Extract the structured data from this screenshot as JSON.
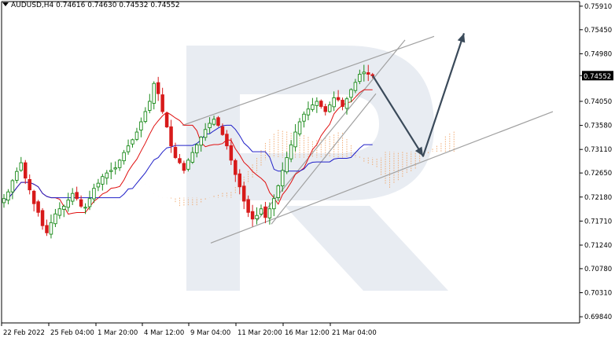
{
  "header": {
    "symbol": "AUDUSD,H4",
    "ohlc": "0.74616 0.74630 0.74532 0.74552"
  },
  "chart_data": {
    "type": "candlestick",
    "symbol": "AUDUSD",
    "timeframe": "H4",
    "current_price": "0.74552",
    "ylim": [
      0.6975,
      0.76
    ],
    "y_ticks": [
      "0.75910",
      "0.75450",
      "0.74980",
      "0.74050",
      "0.73580",
      "0.73110",
      "0.72650",
      "0.72180",
      "0.71710",
      "0.71240",
      "0.70780",
      "0.70310",
      "0.69840"
    ],
    "x_ticks": [
      "22 Feb 2022",
      "25 Feb 04:00",
      "1 Mar 20:00",
      "4 Mar 12:00",
      "9 Mar 04:00",
      "11 Mar 20:00",
      "16 Mar 12:00",
      "21 Mar 04:00"
    ],
    "grid": false,
    "colors": {
      "bull": "#1a8a1a",
      "bear": "#d71a1a",
      "tenkan": "#e01010",
      "kijun": "#2020c8",
      "cloud": "#f0a060",
      "channel": "#a0a0a0",
      "forecast": "#3a4a5a",
      "watermark": "#e8ecf2"
    },
    "series": [
      {
        "name": "price",
        "values": [
          0.7215,
          0.7228,
          0.725,
          0.7268,
          0.7285,
          0.7255,
          0.7232,
          0.7205,
          0.7188,
          0.7162,
          0.7148,
          0.7168,
          0.7185,
          0.7195,
          0.72,
          0.7212,
          0.7225,
          0.7215,
          0.72,
          0.7198,
          0.7215,
          0.7235,
          0.7245,
          0.7258,
          0.7265,
          0.727,
          0.7275,
          0.729,
          0.7305,
          0.7318,
          0.733,
          0.7345,
          0.7365,
          0.7385,
          0.7405,
          0.744,
          0.742,
          0.7385,
          0.7355,
          0.7318,
          0.7295,
          0.7285,
          0.727,
          0.729,
          0.7305,
          0.732,
          0.7335,
          0.735,
          0.7362,
          0.737,
          0.7358,
          0.734,
          0.7318,
          0.729,
          0.7262,
          0.7238,
          0.721,
          0.7188,
          0.7175,
          0.7182,
          0.7195,
          0.7178,
          0.7195,
          0.7215,
          0.724,
          0.727,
          0.7295,
          0.732,
          0.7345,
          0.7365,
          0.738,
          0.739,
          0.7398,
          0.7405,
          0.7395,
          0.7385,
          0.7398,
          0.7412,
          0.7408,
          0.7395,
          0.741,
          0.7428,
          0.7442,
          0.7458,
          0.7462,
          0.7458,
          0.7455
        ]
      },
      {
        "name": "forecast",
        "values": [
          0.7455,
          0.7298,
          0.7538
        ]
      }
    ]
  }
}
